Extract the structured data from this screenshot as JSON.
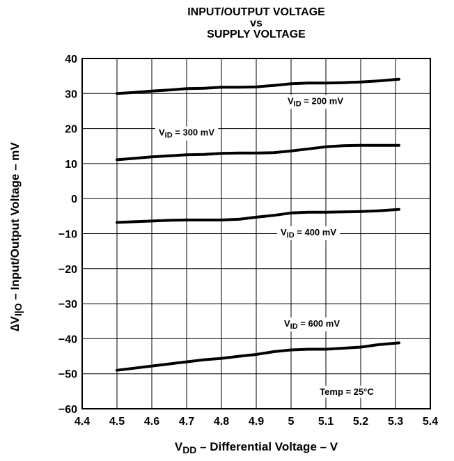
{
  "chart_data": {
    "type": "line",
    "title_lines": [
      "INPUT/OUTPUT VOLTAGE",
      "vs",
      "SUPPLY VOLTAGE"
    ],
    "xlabel": {
      "main": "V",
      "sub": "DD",
      "rest": " – Differential Voltage – V"
    },
    "ylabel": {
      "prefix": "∆V",
      "sub": "I|O",
      "rest": " – Input/Output Voltage – mV"
    },
    "xlim": [
      4.4,
      5.4
    ],
    "ylim": [
      -60,
      40
    ],
    "xticks": [
      4.4,
      4.5,
      4.6,
      4.7,
      4.8,
      4.9,
      5.0,
      5.1,
      5.2,
      5.3,
      5.4
    ],
    "xtick_labels": [
      "4.4",
      "4.5",
      "4.6",
      "4.7",
      "4.8",
      "4.9",
      "5",
      "5.1",
      "5.2",
      "5.3",
      "5.4"
    ],
    "yticks": [
      40,
      30,
      20,
      10,
      0,
      -10,
      -20,
      -30,
      -40,
      -50,
      -60
    ],
    "ytick_labels": [
      "40",
      "30",
      "20",
      "10",
      "0",
      "−10",
      "−20",
      "−30",
      "−40",
      "−50",
      "−60"
    ],
    "grid": true,
    "series": [
      {
        "name": "VID = 200 mV",
        "x": [
          4.5,
          4.55,
          4.6,
          4.65,
          4.7,
          4.75,
          4.8,
          4.85,
          4.9,
          4.95,
          5.0,
          5.05,
          5.1,
          5.15,
          5.2,
          5.25,
          5.31
        ],
        "y": [
          30,
          30.3,
          30.7,
          31,
          31.4,
          31.5,
          31.8,
          31.8,
          31.9,
          32.3,
          32.8,
          33,
          33,
          33.1,
          33.3,
          33.6,
          34.1
        ]
      },
      {
        "name": "VID = 300 mV",
        "x": [
          4.5,
          4.55,
          4.6,
          4.65,
          4.7,
          4.75,
          4.8,
          4.85,
          4.9,
          4.95,
          5.0,
          5.05,
          5.1,
          5.15,
          5.2,
          5.25,
          5.31
        ],
        "y": [
          11.1,
          11.5,
          11.9,
          12.2,
          12.5,
          12.6,
          12.9,
          13,
          13,
          13.1,
          13.6,
          14.2,
          14.8,
          15.1,
          15.2,
          15.2,
          15.2
        ]
      },
      {
        "name": "VID = 400 mV",
        "x": [
          4.5,
          4.55,
          4.6,
          4.65,
          4.7,
          4.75,
          4.8,
          4.85,
          4.9,
          4.95,
          5.0,
          5.05,
          5.1,
          5.15,
          5.2,
          5.25,
          5.31
        ],
        "y": [
          -6.8,
          -6.6,
          -6.4,
          -6.2,
          -6.1,
          -6.1,
          -6.1,
          -5.9,
          -5.3,
          -4.8,
          -4.1,
          -3.9,
          -3.9,
          -3.8,
          -3.7,
          -3.5,
          -3.1
        ]
      },
      {
        "name": "VID = 600 mV",
        "x": [
          4.5,
          4.55,
          4.6,
          4.65,
          4.7,
          4.75,
          4.8,
          4.85,
          4.9,
          4.95,
          5.0,
          5.05,
          5.1,
          5.15,
          5.2,
          5.25,
          5.31
        ],
        "y": [
          -49,
          -48.4,
          -47.8,
          -47.2,
          -46.6,
          -46,
          -45.6,
          -45,
          -44.5,
          -43.7,
          -43.2,
          -43,
          -43,
          -42.7,
          -42.4,
          -41.7,
          -41.2
        ]
      }
    ],
    "annotations": [
      {
        "main": "V",
        "sub": "ID",
        "rest": " = 200 mV",
        "x": 5.07,
        "y": 28,
        "anchor": "middle"
      },
      {
        "main": "V",
        "sub": "ID",
        "rest": " = 300 mV",
        "x": 4.7,
        "y": 19,
        "anchor": "middle"
      },
      {
        "main": "V",
        "sub": "ID",
        "rest": " = 400 mV",
        "x": 5.05,
        "y": -9.5,
        "anchor": "middle"
      },
      {
        "main": "V",
        "sub": "ID",
        "rest": " = 600 mV",
        "x": 5.06,
        "y": -35.5,
        "anchor": "middle"
      },
      {
        "main": "Temp = 25°C",
        "sub": "",
        "rest": "",
        "x": 5.16,
        "y": -55,
        "anchor": "middle"
      }
    ],
    "colors": {
      "line": "#000000",
      "grid": "#000000",
      "background": "#ffffff"
    }
  }
}
